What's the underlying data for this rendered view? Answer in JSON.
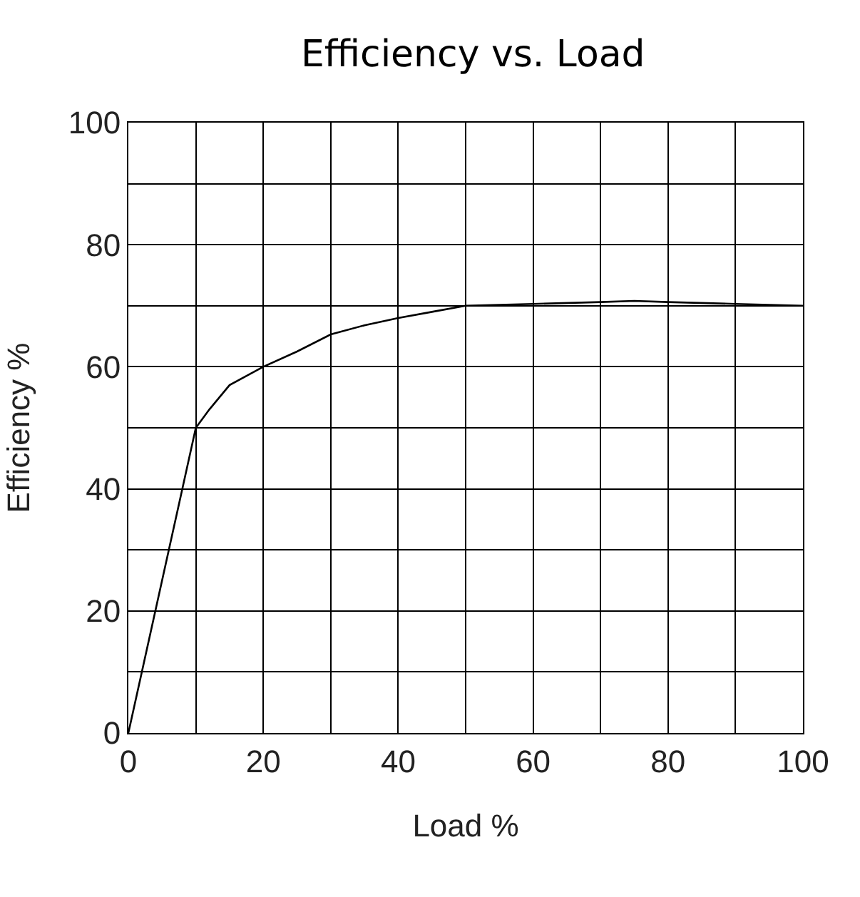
{
  "chart_data": {
    "type": "line",
    "title": "Efficiency vs. Load",
    "xlabel": "Load %",
    "ylabel": "Efficiency %",
    "x": [
      0,
      10,
      12,
      15,
      20,
      25,
      30,
      35,
      40,
      45,
      50,
      60,
      70,
      75,
      80,
      90,
      100
    ],
    "series": [
      {
        "color": "#000000",
        "values": [
          0,
          50,
          53,
          57,
          60,
          62.5,
          65.3,
          66.8,
          68,
          69,
          70,
          70.3,
          70.6,
          70.8,
          70.6,
          70.3,
          70
        ]
      }
    ],
    "xlim": [
      0,
      100
    ],
    "ylim": [
      0,
      100
    ],
    "xticks": [
      0,
      {
        "value": 10,
        "label": null
      },
      20,
      {
        "value": 30,
        "label": null
      },
      40,
      {
        "value": 50,
        "label": null
      },
      60,
      {
        "value": 70,
        "label": null
      },
      80,
      {
        "value": 90,
        "label": null
      },
      100
    ],
    "yticks": [
      0,
      {
        "value": 10,
        "label": null
      },
      20,
      {
        "value": 30,
        "label": null
      },
      40,
      {
        "value": 50,
        "label": null
      },
      60,
      {
        "value": 70,
        "label": null
      },
      80,
      {
        "value": 90,
        "label": null
      },
      100
    ],
    "grid": true,
    "marker": "none",
    "line_style": "solid"
  }
}
